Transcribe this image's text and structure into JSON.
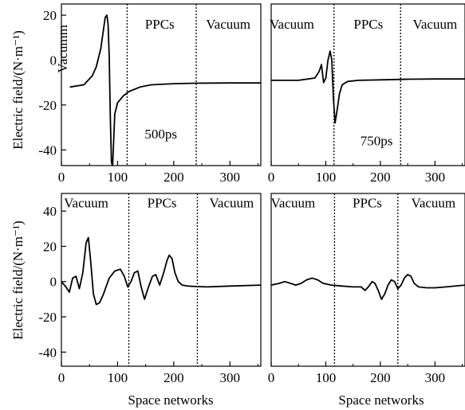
{
  "figure": {
    "ylabel": "Electric field/(N·m⁻¹)",
    "xlabel": "Space networks"
  },
  "chart_data": [
    {
      "type": "line",
      "panel": "top-left",
      "xlim": [
        0,
        355
      ],
      "ylim": [
        -47,
        25
      ],
      "xticks": [
        "0",
        "100",
        "200",
        "300"
      ],
      "yticks": [
        "20",
        "0",
        "-20",
        "-40"
      ],
      "xtick_values": [
        0,
        100,
        200,
        300
      ],
      "ytick_values": [
        20,
        0,
        -20,
        -40
      ],
      "boundaries": [
        117,
        240
      ],
      "regions": [
        {
          "text": "Vacumm",
          "x": 10,
          "y": 5,
          "rotated": true
        },
        {
          "text": "PPCs",
          "x": 175,
          "y": 14
        },
        {
          "text": "Vacuum",
          "x": 297,
          "y": 14
        }
      ],
      "annotation": {
        "text": "500ps",
        "x": 177,
        "y": -35
      },
      "series": [
        {
          "x": [
            15,
            40,
            55,
            62,
            70,
            74,
            78,
            81,
            83,
            85,
            87,
            89,
            91,
            93,
            95,
            100,
            110,
            120,
            140,
            160,
            200,
            240,
            300,
            355
          ],
          "y": [
            -12,
            -11,
            -7,
            -3,
            5,
            12,
            19,
            20,
            16,
            2,
            -25,
            -45,
            -48,
            -36,
            -24,
            -19,
            -16,
            -14,
            -12,
            -11,
            -10.5,
            -10.3,
            -10.2,
            -10.2
          ]
        }
      ]
    },
    {
      "type": "line",
      "panel": "top-right",
      "xlim": [
        0,
        355
      ],
      "ylim": [
        -47,
        25
      ],
      "xticks": [
        "0",
        "100",
        "200",
        "300"
      ],
      "yticks": [],
      "xtick_values": [
        0,
        100,
        200,
        300
      ],
      "ytick_values": [],
      "boundaries": [
        115,
        237
      ],
      "regions": [
        {
          "text": "Vacuum",
          "x": 38,
          "y": 14
        },
        {
          "text": "PPCs",
          "x": 178,
          "y": 14
        },
        {
          "text": "Vacuum",
          "x": 300,
          "y": 14
        }
      ],
      "annotation": {
        "text": "750ps",
        "x": 193,
        "y": -38
      },
      "series": [
        {
          "x": [
            0,
            50,
            80,
            88,
            92,
            96,
            100,
            104,
            108,
            111,
            114,
            117,
            121,
            125,
            130,
            140,
            160,
            200,
            250,
            300,
            355
          ],
          "y": [
            -9,
            -9,
            -8,
            -5,
            -2,
            -10,
            -8,
            0,
            4,
            0,
            -17,
            -28,
            -22,
            -15,
            -11,
            -9.5,
            -9,
            -8.8,
            -8.5,
            -8.4,
            -8.4
          ]
        }
      ]
    },
    {
      "type": "line",
      "panel": "bottom-left",
      "xlim": [
        0,
        355
      ],
      "ylim": [
        -48,
        50
      ],
      "xticks": [
        "0",
        "100",
        "200",
        "300"
      ],
      "yticks": [
        "40",
        "20",
        "0",
        "-20",
        "-40"
      ],
      "xtick_values": [
        0,
        100,
        200,
        300
      ],
      "ytick_values": [
        40,
        20,
        0,
        -20,
        -40
      ],
      "boundaries": [
        120,
        242
      ],
      "regions": [
        {
          "text": "Vacuum",
          "x": 44,
          "y": 42
        },
        {
          "text": "PPCs",
          "x": 179,
          "y": 42
        },
        {
          "text": "Vacuum",
          "x": 303,
          "y": 42
        }
      ],
      "series": [
        {
          "x": [
            0,
            8,
            14,
            20,
            26,
            32,
            38,
            44,
            48,
            52,
            57,
            62,
            68,
            75,
            85,
            95,
            105,
            112,
            118,
            124,
            130,
            136,
            142,
            148,
            155,
            162,
            168,
            175,
            182,
            188,
            192,
            197,
            202,
            208,
            215,
            225,
            240,
            260,
            300,
            355
          ],
          "y": [
            0,
            -3,
            -6,
            2,
            3,
            -4,
            5,
            22,
            25,
            12,
            -7,
            -13,
            -12,
            -7,
            2,
            6,
            7,
            3,
            -3,
            0,
            5,
            6,
            -3,
            -10,
            -3,
            3,
            4,
            -2,
            5,
            12,
            15,
            13,
            5,
            0,
            -2,
            -2.5,
            -2.8,
            -3,
            -2.5,
            -2
          ]
        }
      ]
    },
    {
      "type": "line",
      "panel": "bottom-right",
      "xlim": [
        0,
        355
      ],
      "ylim": [
        -48,
        50
      ],
      "xticks": [
        "0",
        "100",
        "200",
        "300"
      ],
      "yticks": [],
      "xtick_values": [
        0,
        100,
        200,
        300
      ],
      "ytick_values": [],
      "boundaries": [
        116,
        232
      ],
      "regions": [
        {
          "text": "Vacuum",
          "x": 40,
          "y": 42
        },
        {
          "text": "PPCs",
          "x": 176,
          "y": 42
        },
        {
          "text": "Vacuum",
          "x": 297,
          "y": 42
        }
      ],
      "series": [
        {
          "x": [
            0,
            15,
            25,
            35,
            45,
            55,
            65,
            75,
            85,
            95,
            110,
            130,
            150,
            165,
            172,
            178,
            185,
            190,
            196,
            202,
            208,
            214,
            220,
            226,
            232,
            238,
            244,
            250,
            256,
            262,
            270,
            285,
            300,
            320,
            355
          ],
          "y": [
            -2,
            -1,
            0,
            -1,
            -2,
            -1,
            1,
            2,
            1,
            -1,
            -2,
            -2.5,
            -3,
            -3,
            -5,
            -3,
            0,
            -1,
            -5,
            -10,
            -7,
            -2,
            1,
            0,
            -4,
            -2,
            2,
            4,
            3,
            -1,
            -3,
            -3.5,
            -3.5,
            -3,
            -2
          ]
        }
      ]
    }
  ]
}
